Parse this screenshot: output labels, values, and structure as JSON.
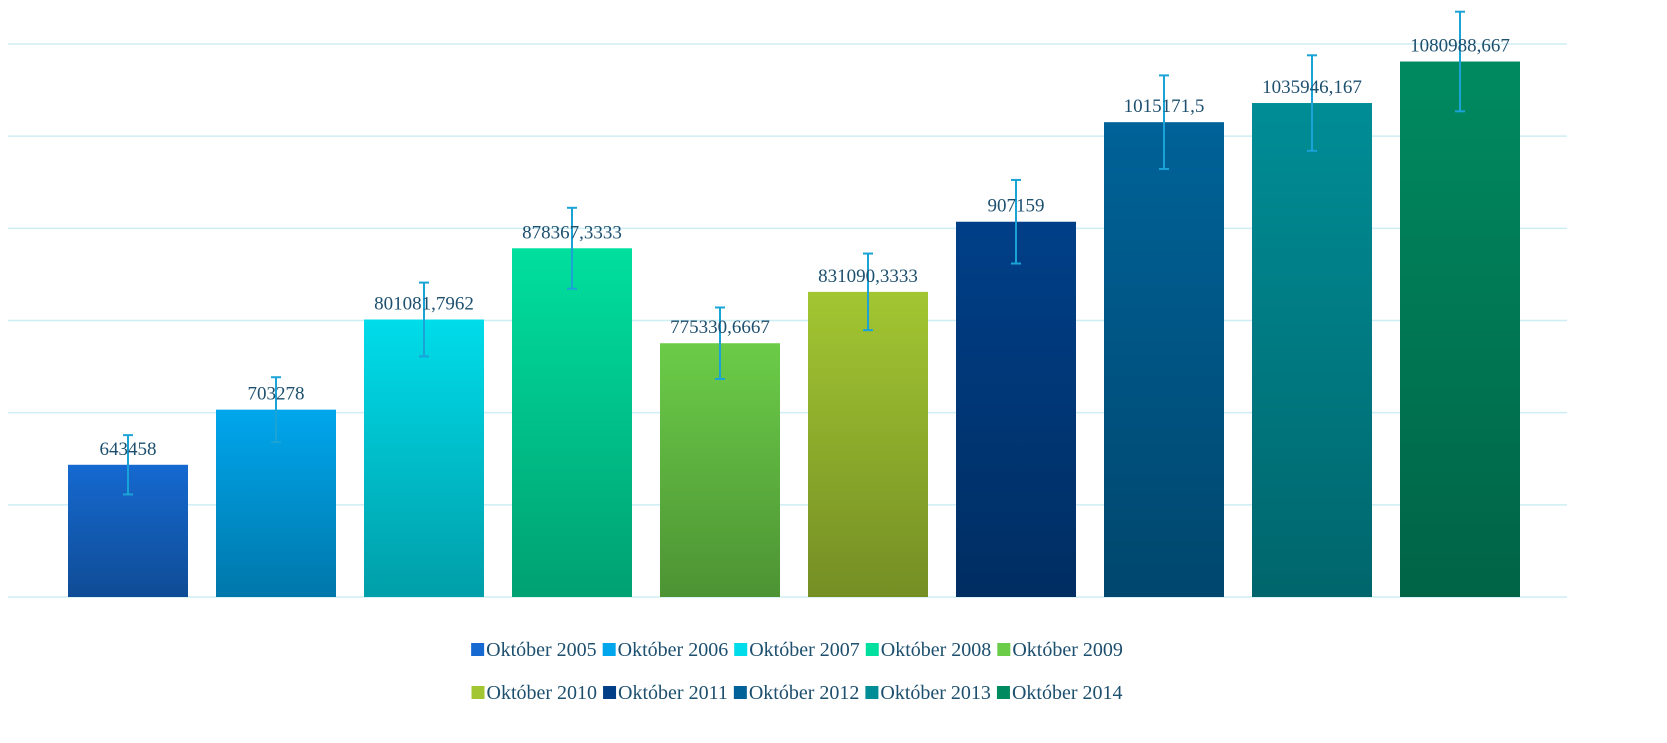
{
  "chart_data": {
    "type": "bar",
    "series": [
      {
        "name": "Október 2005",
        "color": "#1569d0",
        "values": [
          643458
        ],
        "value_labels": [
          "643458"
        ],
        "errors": [
          32173
        ]
      },
      {
        "name": "Október 2006",
        "color": "#00a6ec",
        "values": [
          703278
        ],
        "value_labels": [
          "703278"
        ],
        "errors": [
          35164
        ]
      },
      {
        "name": "Október 2007",
        "color": "#00dcea",
        "values": [
          801081.7962
        ],
        "value_labels": [
          "801081,7962"
        ],
        "errors": [
          40054
        ]
      },
      {
        "name": "Október 2008",
        "color": "#00df9e",
        "values": [
          878367.3333
        ],
        "value_labels": [
          "878367,3333"
        ],
        "errors": [
          43918
        ]
      },
      {
        "name": "Október 2009",
        "color": "#6bcc48",
        "values": [
          775330.6667
        ],
        "value_labels": [
          "775330,6667"
        ],
        "errors": [
          38767
        ]
      },
      {
        "name": "Október 2010",
        "color": "#a2c632",
        "values": [
          831090.3333
        ],
        "value_labels": [
          "831090,3333"
        ],
        "errors": [
          41555
        ]
      },
      {
        "name": "Október 2011",
        "color": "#003f88",
        "values": [
          907159
        ],
        "value_labels": [
          "907159"
        ],
        "errors": [
          45358
        ]
      },
      {
        "name": "Október 2012",
        "color": "#006298",
        "values": [
          1015171.5
        ],
        "value_labels": [
          "1015171,5"
        ],
        "errors": [
          50759
        ]
      },
      {
        "name": "Október 2013",
        "color": "#008d96",
        "values": [
          1035946.167
        ],
        "value_labels": [
          "1035946,167"
        ],
        "errors": [
          51797
        ]
      },
      {
        "name": "Október 2014",
        "color": "#008a60",
        "values": [
          1080988.667
        ],
        "value_labels": [
          "1080988,667"
        ],
        "errors": [
          54049
        ]
      }
    ],
    "ylim": [
      500000,
      1100000
    ],
    "yticks": [
      500000,
      600000,
      700000,
      800000,
      900000,
      1000000,
      1100000
    ],
    "grid": true,
    "error_color": "#1aa3d6"
  }
}
